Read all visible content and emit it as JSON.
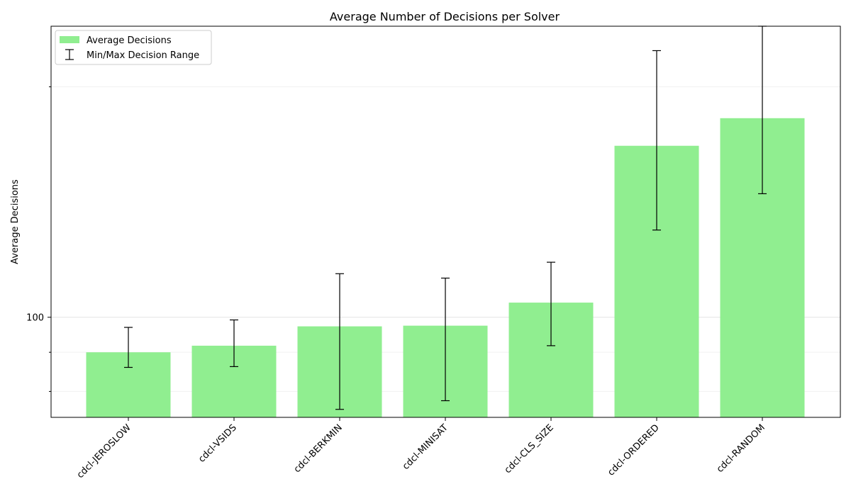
{
  "chart_data": {
    "type": "bar",
    "title": "Average Number of Decisions per Solver",
    "xlabel": "",
    "ylabel": "Average Decisions",
    "yscale": "log",
    "ylim": [
      74,
      240
    ],
    "y_tick_labels": [
      "100"
    ],
    "grid": true,
    "legend_position": "upper left",
    "categories": [
      "cdcl-JEROSLOW",
      "cdcl-VSIDS",
      "cdcl-BERKMIN",
      "cdcl-MINISAT",
      "cdcl-CLS_SIZE",
      "cdcl-ORDERED",
      "cdcl-RANDOM"
    ],
    "series": [
      {
        "name": "Average Decisions",
        "values": [
          90,
          91.8,
          97.3,
          97.5,
          104.5,
          167.5,
          182
        ],
        "color": "#90ee90"
      }
    ],
    "error_range": {
      "name": "Min/Max Decision Range",
      "min": [
        86,
        86.2,
        75.8,
        77.8,
        91.8,
        130,
        145
      ],
      "max": [
        97,
        99.2,
        114,
        112.5,
        118,
        223,
        240
      ],
      "color": "#000000"
    }
  }
}
